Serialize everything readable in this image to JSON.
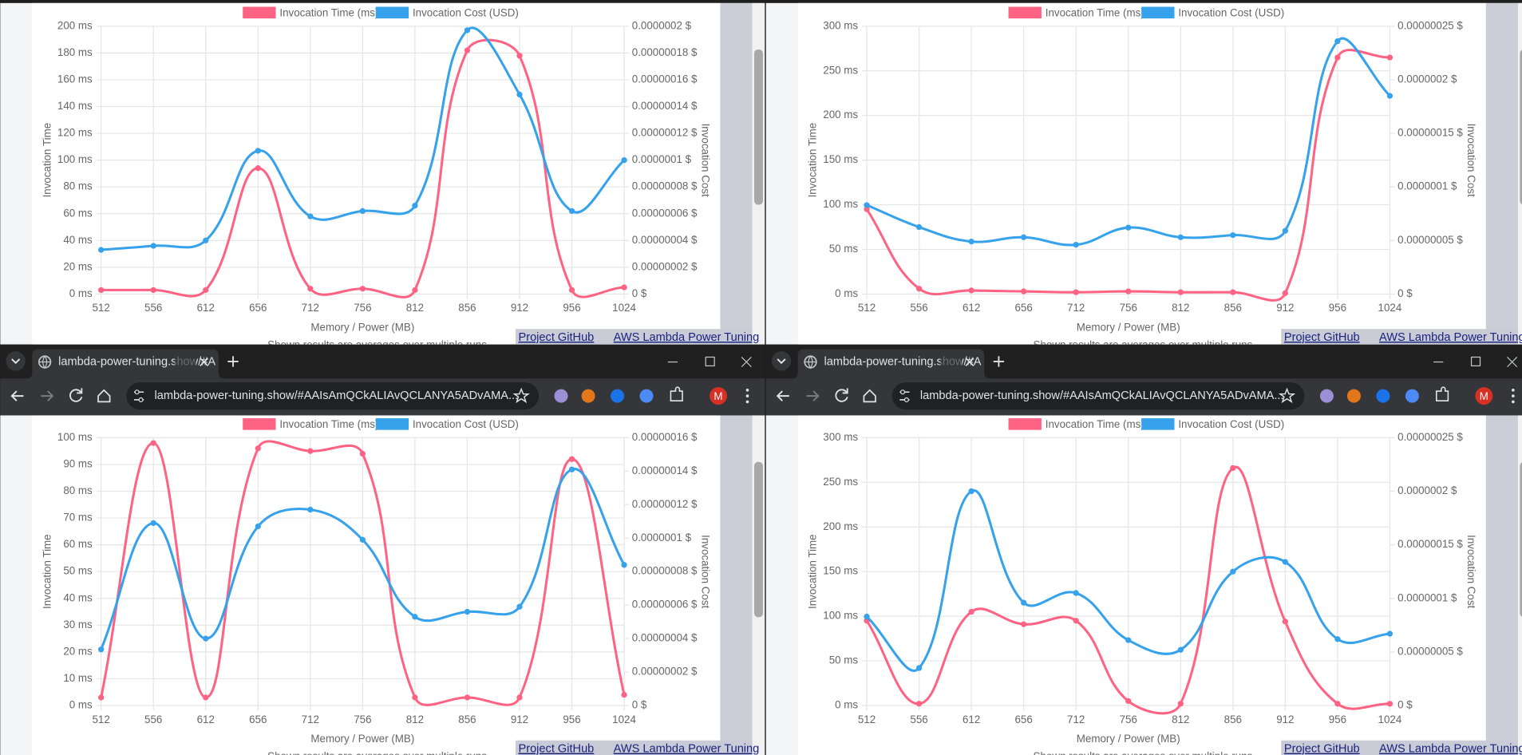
{
  "browser": {
    "tab_title": "lambda-power-tuning.show/#A",
    "url": "lambda-power-tuning.show/#AAIsAmQCkALIAvQCLANYA5ADvAMA...",
    "avatar": "M"
  },
  "footer": {
    "links": [
      "Project GitHub",
      "AWS Lambda Power Tuning"
    ],
    "note": "Shown results are averages over multiple runs."
  },
  "chart_data": [
    {
      "type": "line",
      "xlabel": "Memory / Power (MB)",
      "ylabel": "Invocation Time",
      "y2label": "Invocation Cost",
      "grid": true,
      "categories": [
        "512",
        "556",
        "612",
        "656",
        "712",
        "756",
        "812",
        "856",
        "912",
        "956",
        "1024"
      ],
      "ylim": [
        0,
        200
      ],
      "yticks": [
        {
          "value": 0,
          "label": "0 ms"
        },
        {
          "value": 20,
          "label": "20 ms"
        },
        {
          "value": 40,
          "label": "40 ms"
        },
        {
          "value": 60,
          "label": "60 ms"
        },
        {
          "value": 80,
          "label": "80 ms"
        },
        {
          "value": 100,
          "label": "100 ms"
        },
        {
          "value": 120,
          "label": "120 ms"
        },
        {
          "value": 140,
          "label": "140 ms"
        },
        {
          "value": 160,
          "label": "160 ms"
        },
        {
          "value": 180,
          "label": "180 ms"
        },
        {
          "value": 200,
          "label": "200 ms"
        }
      ],
      "y2lim": [
        0,
        2e-07
      ],
      "y2ticks": [
        {
          "value": 0,
          "label": "0 $"
        },
        {
          "value": 2e-08,
          "label": "0.00000002 $"
        },
        {
          "value": 4e-08,
          "label": "0.00000004 $"
        },
        {
          "value": 6e-08,
          "label": "0.00000006 $"
        },
        {
          "value": 8e-08,
          "label": "0.00000008 $"
        },
        {
          "value": 1e-07,
          "label": "0.0000001 $"
        },
        {
          "value": 1.2e-07,
          "label": "0.00000012 $"
        },
        {
          "value": 1.4e-07,
          "label": "0.00000014 $"
        },
        {
          "value": 1.6e-07,
          "label": "0.00000016 $"
        },
        {
          "value": 1.8e-07,
          "label": "0.00000018 $"
        },
        {
          "value": 2e-07,
          "label": "0.0000002 $"
        }
      ],
      "series": [
        {
          "name": "Invocation Time (ms)",
          "color": "#ff6384",
          "values": [
            3,
            3,
            3,
            94,
            4,
            4,
            3,
            182,
            178,
            3,
            5
          ]
        },
        {
          "name": "Invocation Cost (USD)",
          "color": "#36a2eb",
          "axis": "y2",
          "values": [
            3.3e-08,
            3.6e-08,
            4e-08,
            1.07e-07,
            5.8e-08,
            6.2e-08,
            6.6e-08,
            1.97e-07,
            1.49e-07,
            6.2e-08,
            1e-07
          ]
        }
      ]
    },
    {
      "type": "line",
      "xlabel": "Memory / Power (MB)",
      "ylabel": "Invocation Time",
      "y2label": "Invocation Cost",
      "grid": true,
      "categories": [
        "512",
        "556",
        "612",
        "656",
        "712",
        "756",
        "812",
        "856",
        "912",
        "956",
        "1024"
      ],
      "ylim": [
        0,
        300
      ],
      "yticks": [
        {
          "value": 0,
          "label": "0 ms"
        },
        {
          "value": 50,
          "label": "50 ms"
        },
        {
          "value": 100,
          "label": "100 ms"
        },
        {
          "value": 150,
          "label": "150 ms"
        },
        {
          "value": 200,
          "label": "200 ms"
        },
        {
          "value": 250,
          "label": "250 ms"
        },
        {
          "value": 300,
          "label": "300 ms"
        }
      ],
      "y2lim": [
        0,
        2.5e-07
      ],
      "y2ticks": [
        {
          "value": 0,
          "label": "0 $"
        },
        {
          "value": 5e-08,
          "label": "0.00000005 $"
        },
        {
          "value": 1e-07,
          "label": "0.0000001 $"
        },
        {
          "value": 1.5e-07,
          "label": "0.00000015 $"
        },
        {
          "value": 2e-07,
          "label": "0.0000002 $"
        },
        {
          "value": 2.5e-07,
          "label": "0.00000025 $"
        }
      ],
      "series": [
        {
          "name": "Invocation Time (ms)",
          "color": "#ff6384",
          "values": [
            95,
            6,
            4,
            3,
            2,
            3,
            2,
            2,
            1,
            265,
            265
          ]
        },
        {
          "name": "Invocation Cost (USD)",
          "color": "#36a2eb",
          "axis": "y2",
          "values": [
            8.3e-08,
            6.25e-08,
            4.9e-08,
            5.3e-08,
            4.6e-08,
            6.2e-08,
            5.3e-08,
            5.5e-08,
            5.9e-08,
            2.36e-07,
            1.85e-07
          ]
        }
      ]
    },
    {
      "type": "line",
      "xlabel": "Memory / Power (MB)",
      "ylabel": "Invocation Time",
      "y2label": "Invocation Cost",
      "grid": true,
      "categories": [
        "512",
        "556",
        "612",
        "656",
        "712",
        "756",
        "812",
        "856",
        "912",
        "956",
        "1024"
      ],
      "ylim": [
        0,
        100
      ],
      "yticks": [
        {
          "value": 0,
          "label": "0 ms"
        },
        {
          "value": 10,
          "label": "10 ms"
        },
        {
          "value": 20,
          "label": "20 ms"
        },
        {
          "value": 30,
          "label": "30 ms"
        },
        {
          "value": 40,
          "label": "40 ms"
        },
        {
          "value": 50,
          "label": "50 ms"
        },
        {
          "value": 60,
          "label": "60 ms"
        },
        {
          "value": 70,
          "label": "70 ms"
        },
        {
          "value": 80,
          "label": "80 ms"
        },
        {
          "value": 90,
          "label": "90 ms"
        },
        {
          "value": 100,
          "label": "100 ms"
        }
      ],
      "y2lim": [
        0,
        1.6e-07
      ],
      "y2ticks": [
        {
          "value": 0,
          "label": "0 $"
        },
        {
          "value": 2e-08,
          "label": "0.00000002 $"
        },
        {
          "value": 4e-08,
          "label": "0.00000004 $"
        },
        {
          "value": 6e-08,
          "label": "0.00000006 $"
        },
        {
          "value": 8e-08,
          "label": "0.00000008 $"
        },
        {
          "value": 1e-07,
          "label": "0.0000001 $"
        },
        {
          "value": 1.2e-07,
          "label": "0.00000012 $"
        },
        {
          "value": 1.4e-07,
          "label": "0.00000014 $"
        },
        {
          "value": 1.6e-07,
          "label": "0.00000016 $"
        }
      ],
      "series": [
        {
          "name": "Invocation Time (ms)",
          "color": "#ff6384",
          "values": [
            3,
            98,
            3,
            96,
            95,
            94,
            3,
            3,
            3,
            92,
            4
          ]
        },
        {
          "name": "Invocation Cost (USD)",
          "color": "#36a2eb",
          "axis": "y2",
          "values": [
            3.35e-08,
            1.09e-07,
            4e-08,
            1.07e-07,
            1.17e-07,
            9.9e-08,
            5.3e-08,
            5.6e-08,
            5.9e-08,
            1.41e-07,
            8.4e-08
          ]
        }
      ]
    },
    {
      "type": "line",
      "xlabel": "Memory / Power (MB)",
      "ylabel": "Invocation Time",
      "y2label": "Invocation Cost",
      "grid": true,
      "categories": [
        "512",
        "556",
        "612",
        "656",
        "712",
        "756",
        "812",
        "856",
        "912",
        "956",
        "1024"
      ],
      "ylim": [
        0,
        300
      ],
      "yticks": [
        {
          "value": 0,
          "label": "0 ms"
        },
        {
          "value": 50,
          "label": "50 ms"
        },
        {
          "value": 100,
          "label": "100 ms"
        },
        {
          "value": 150,
          "label": "150 ms"
        },
        {
          "value": 200,
          "label": "200 ms"
        },
        {
          "value": 250,
          "label": "250 ms"
        },
        {
          "value": 300,
          "label": "300 ms"
        }
      ],
      "y2lim": [
        0,
        2.5e-07
      ],
      "y2ticks": [
        {
          "value": 0,
          "label": "0 $"
        },
        {
          "value": 5e-08,
          "label": "0.00000005 $"
        },
        {
          "value": 1e-07,
          "label": "0.0000001 $"
        },
        {
          "value": 1.5e-07,
          "label": "0.00000015 $"
        },
        {
          "value": 2e-07,
          "label": "0.0000002 $"
        },
        {
          "value": 2.5e-07,
          "label": "0.00000025 $"
        }
      ],
      "series": [
        {
          "name": "Invocation Time (ms)",
          "color": "#ff6384",
          "values": [
            95,
            2,
            105,
            91,
            95,
            5,
            2,
            266,
            94,
            2,
            2
          ]
        },
        {
          "name": "Invocation Cost (USD)",
          "color": "#36a2eb",
          "axis": "y2",
          "values": [
            8.3e-08,
            3.5e-08,
            2e-07,
            9.6e-08,
            1.05e-07,
            6.1e-08,
            5.2e-08,
            1.25e-07,
            1.34e-07,
            6.2e-08,
            6.7e-08
          ]
        }
      ]
    }
  ]
}
